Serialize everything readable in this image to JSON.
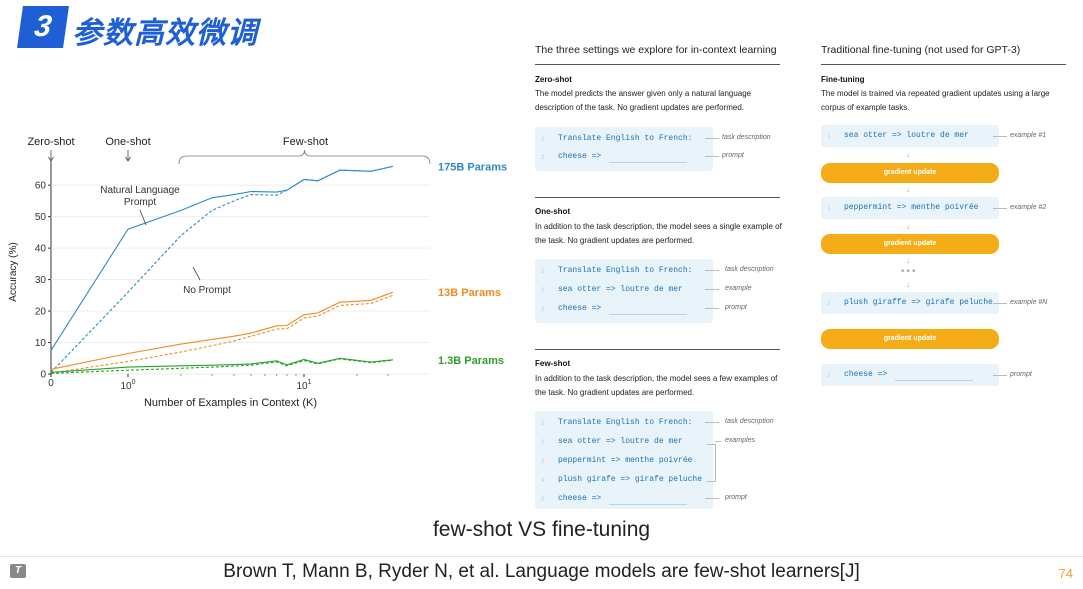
{
  "header": {
    "number": "3",
    "title": "参数高效微调"
  },
  "chart_data": {
    "type": "line",
    "xlabel": "Number of Examples in Context (K)",
    "ylabel": "Accuracy (%)",
    "xscale": "log",
    "ylim": [
      0,
      68
    ],
    "yticks": [
      "0",
      "10",
      "20",
      "30",
      "40",
      "50",
      "60"
    ],
    "xticks": [
      {
        "value": 0,
        "label": "0"
      },
      {
        "value": 1,
        "label": "10^0"
      },
      {
        "value": 10,
        "label": "10^1"
      }
    ],
    "regions": [
      "Zero-shot",
      "One-shot",
      "Few-shot"
    ],
    "annotations": [
      "Natural Language Prompt",
      "No Prompt"
    ],
    "series": [
      {
        "name": "175B Params",
        "color": "#2b8cc4",
        "style": "solid",
        "x": [
          0,
          1,
          2,
          3,
          4,
          5,
          7,
          8,
          10,
          12,
          16,
          24,
          32
        ],
        "y": [
          7.5,
          46,
          52,
          56,
          57,
          58,
          57,
          59,
          61,
          62,
          64,
          65,
          66
        ]
      },
      {
        "name": "175B Params",
        "color": "#2b8cc4",
        "style": "dashed",
        "x": [
          0,
          1,
          2,
          3,
          4,
          5,
          7,
          8,
          10,
          12,
          16,
          24,
          32
        ],
        "y": [
          0.5,
          26,
          44,
          52,
          55,
          57,
          56,
          59,
          61,
          62,
          64,
          65,
          66
        ]
      },
      {
        "name": "13B Params",
        "color": "#f08a24",
        "style": "solid",
        "x": [
          0,
          1,
          2,
          3,
          4,
          5,
          7,
          8,
          10,
          12,
          16,
          24,
          32
        ],
        "y": [
          1.5,
          6.5,
          9.5,
          11,
          12,
          13,
          14.5,
          16,
          18,
          20,
          22,
          24,
          26
        ]
      },
      {
        "name": "13B Params",
        "color": "#f08a24",
        "style": "dashed",
        "x": [
          0,
          1,
          2,
          3,
          4,
          5,
          7,
          8,
          10,
          12,
          16,
          24,
          32
        ],
        "y": [
          0.3,
          4,
          7,
          9,
          10.5,
          12,
          13.5,
          15,
          17,
          19,
          21,
          23,
          25
        ]
      },
      {
        "name": "1.3B Params",
        "color": "#2ca02c",
        "style": "solid",
        "x": [
          0,
          1,
          2,
          3,
          4,
          5,
          7,
          8,
          10,
          12,
          16,
          24,
          32
        ],
        "y": [
          0.5,
          2.2,
          2.6,
          2.8,
          3,
          3.2,
          3.4,
          3.5,
          3.8,
          4,
          4.2,
          4.4,
          4.5
        ]
      },
      {
        "name": "1.3B Params",
        "color": "#2ca02c",
        "style": "dashed",
        "x": [
          0,
          1,
          2,
          3,
          4,
          5,
          7,
          8,
          10,
          12,
          16,
          24,
          32
        ],
        "y": [
          0.2,
          1.2,
          1.8,
          2.2,
          2.5,
          2.8,
          3,
          3.2,
          3.5,
          3.8,
          4,
          4.2,
          4.4
        ]
      }
    ]
  },
  "incontext": {
    "heading": "The three settings we explore for in-context learning",
    "zero_shot": {
      "name": "Zero-shot",
      "desc": "The model predicts the answer given only a natural language description of the task. No gradient updates are performed.",
      "lines": [
        {
          "n": "1",
          "code": "Translate English to French:",
          "ann": "task description"
        },
        {
          "n": "2",
          "code": "cheese =>",
          "ann": "prompt"
        }
      ]
    },
    "one_shot": {
      "name": "One-shot",
      "desc": "In addition to the task description, the model sees a single example of the task. No gradient updates are performed.",
      "lines": [
        {
          "n": "1",
          "code": "Translate English to French:",
          "ann": "task description"
        },
        {
          "n": "2",
          "code": "sea otter => loutre de mer",
          "ann": "example"
        },
        {
          "n": "3",
          "code": "cheese =>",
          "ann": "prompt"
        }
      ]
    },
    "few_shot": {
      "name": "Few-shot",
      "desc": "In addition to the task description, the model sees a few examples of the task. No gradient updates are performed.",
      "lines": [
        {
          "n": "1",
          "code": "Translate English to French:",
          "ann": "task description"
        },
        {
          "n": "2",
          "code": "sea otter => loutre de mer",
          "ann": "examples"
        },
        {
          "n": "3",
          "code": "peppermint => menthe poivrée",
          "ann": ""
        },
        {
          "n": "4",
          "code": "plush girafe => girafe peluche",
          "ann": ""
        },
        {
          "n": "5",
          "code": "cheese =>",
          "ann": "prompt"
        }
      ]
    }
  },
  "finetuning": {
    "heading": "Traditional fine-tuning (not used for GPT-3)",
    "name": "Fine-tuning",
    "desc": "The model is trained via repeated gradient updates using a large corpus of example tasks.",
    "examples": [
      {
        "n": "1",
        "code": "sea otter => loutre de mer",
        "ann": "example #1"
      },
      {
        "n": "1",
        "code": "peppermint => menthe poivrée",
        "ann": "example #2"
      },
      {
        "n": "1",
        "code": "plush giraffe => girafe peluche",
        "ann": "example #N"
      }
    ],
    "gradient_label": "gradient update",
    "prompt": {
      "n": "1",
      "code": "cheese =>",
      "ann": "prompt"
    }
  },
  "caption": "few-shot  VS fine-tuning",
  "citation": "Brown T, Mann B, Ryder N, et al. Language models are few-shot learners[J]",
  "page_number": "74"
}
